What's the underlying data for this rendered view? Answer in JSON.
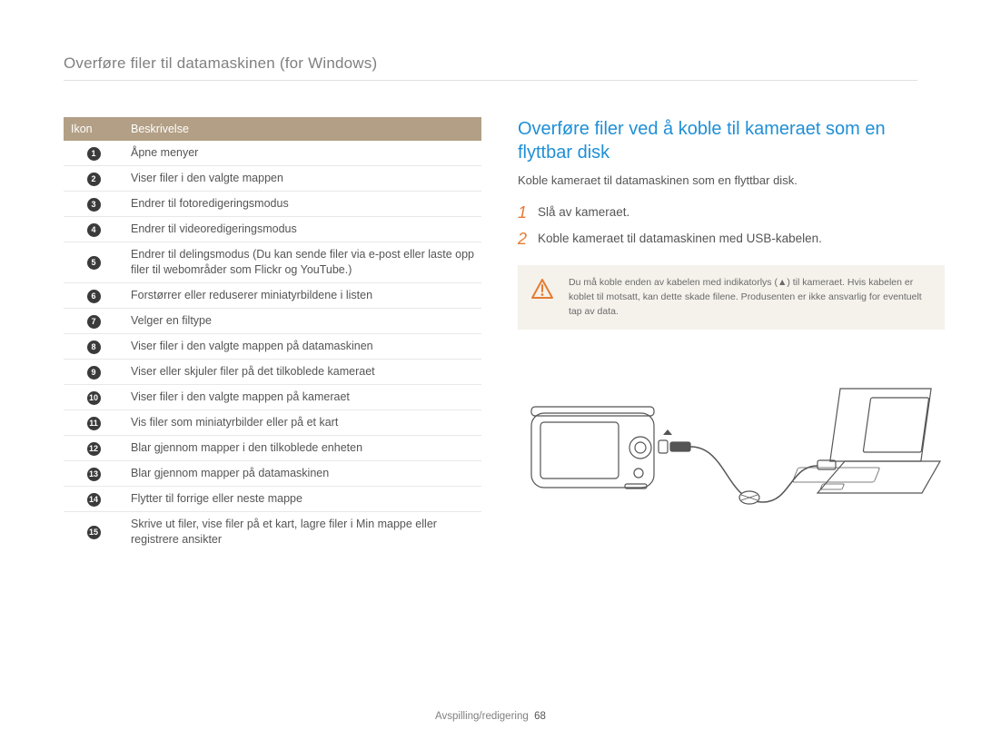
{
  "breadcrumb": "Overføre filer til datamaskinen (for Windows)",
  "table": {
    "head_icon": "Ikon",
    "head_desc": "Beskrivelse",
    "rows": [
      {
        "n": "1",
        "desc": "Åpne menyer"
      },
      {
        "n": "2",
        "desc": "Viser filer i den valgte mappen"
      },
      {
        "n": "3",
        "desc": "Endrer til fotoredigeringsmodus"
      },
      {
        "n": "4",
        "desc": "Endrer til videoredigeringsmodus"
      },
      {
        "n": "5",
        "desc": "Endrer til delingsmodus (Du kan sende filer via e-post eller laste opp filer til webområder som Flickr og YouTube.)"
      },
      {
        "n": "6",
        "desc": "Forstørrer eller reduserer miniatyrbildene i listen"
      },
      {
        "n": "7",
        "desc": "Velger en filtype"
      },
      {
        "n": "8",
        "desc": "Viser filer i den valgte mappen på datamaskinen"
      },
      {
        "n": "9",
        "desc": "Viser eller skjuler filer på det tilkoblede kameraet"
      },
      {
        "n": "10",
        "desc": "Viser filer i den valgte mappen på kameraet"
      },
      {
        "n": "11",
        "desc": "Vis filer som miniatyrbilder eller på et kart"
      },
      {
        "n": "12",
        "desc": "Blar gjennom mapper i den tilkoblede enheten"
      },
      {
        "n": "13",
        "desc": "Blar gjennom mapper på datamaskinen"
      },
      {
        "n": "14",
        "desc": "Flytter til forrige eller neste mappe"
      },
      {
        "n": "15",
        "desc": "Skrive ut filer, vise filer på et kart, lagre filer i Min mappe eller registrere ansikter"
      }
    ]
  },
  "section": {
    "title": "Overføre filer ved å koble til kameraet som en flyttbar disk",
    "intro": "Koble kameraet til datamaskinen som en flyttbar disk.",
    "steps": [
      {
        "n": "1",
        "text": "Slå av kameraet."
      },
      {
        "n": "2",
        "text": "Koble kameraet til datamaskinen med USB-kabelen."
      }
    ],
    "note": "Du må koble enden av kabelen med indikatorlys (▲) til kameraet. Hvis kabelen er koblet til motsatt, kan dette skade filene. Produsenten er ikke ansvarlig for eventuelt tap av data."
  },
  "footer": {
    "section": "Avspilling/redigering",
    "page": "68"
  },
  "colors": {
    "accent_blue": "#1f8fd6",
    "accent_orange": "#e77a31",
    "table_head_bg": "#b29f85",
    "table_head_fg": "#ffffff",
    "note_bg": "#f5f2ec",
    "text": "#555555",
    "muted": "#808080",
    "circle_bg": "#3a3a3a"
  }
}
